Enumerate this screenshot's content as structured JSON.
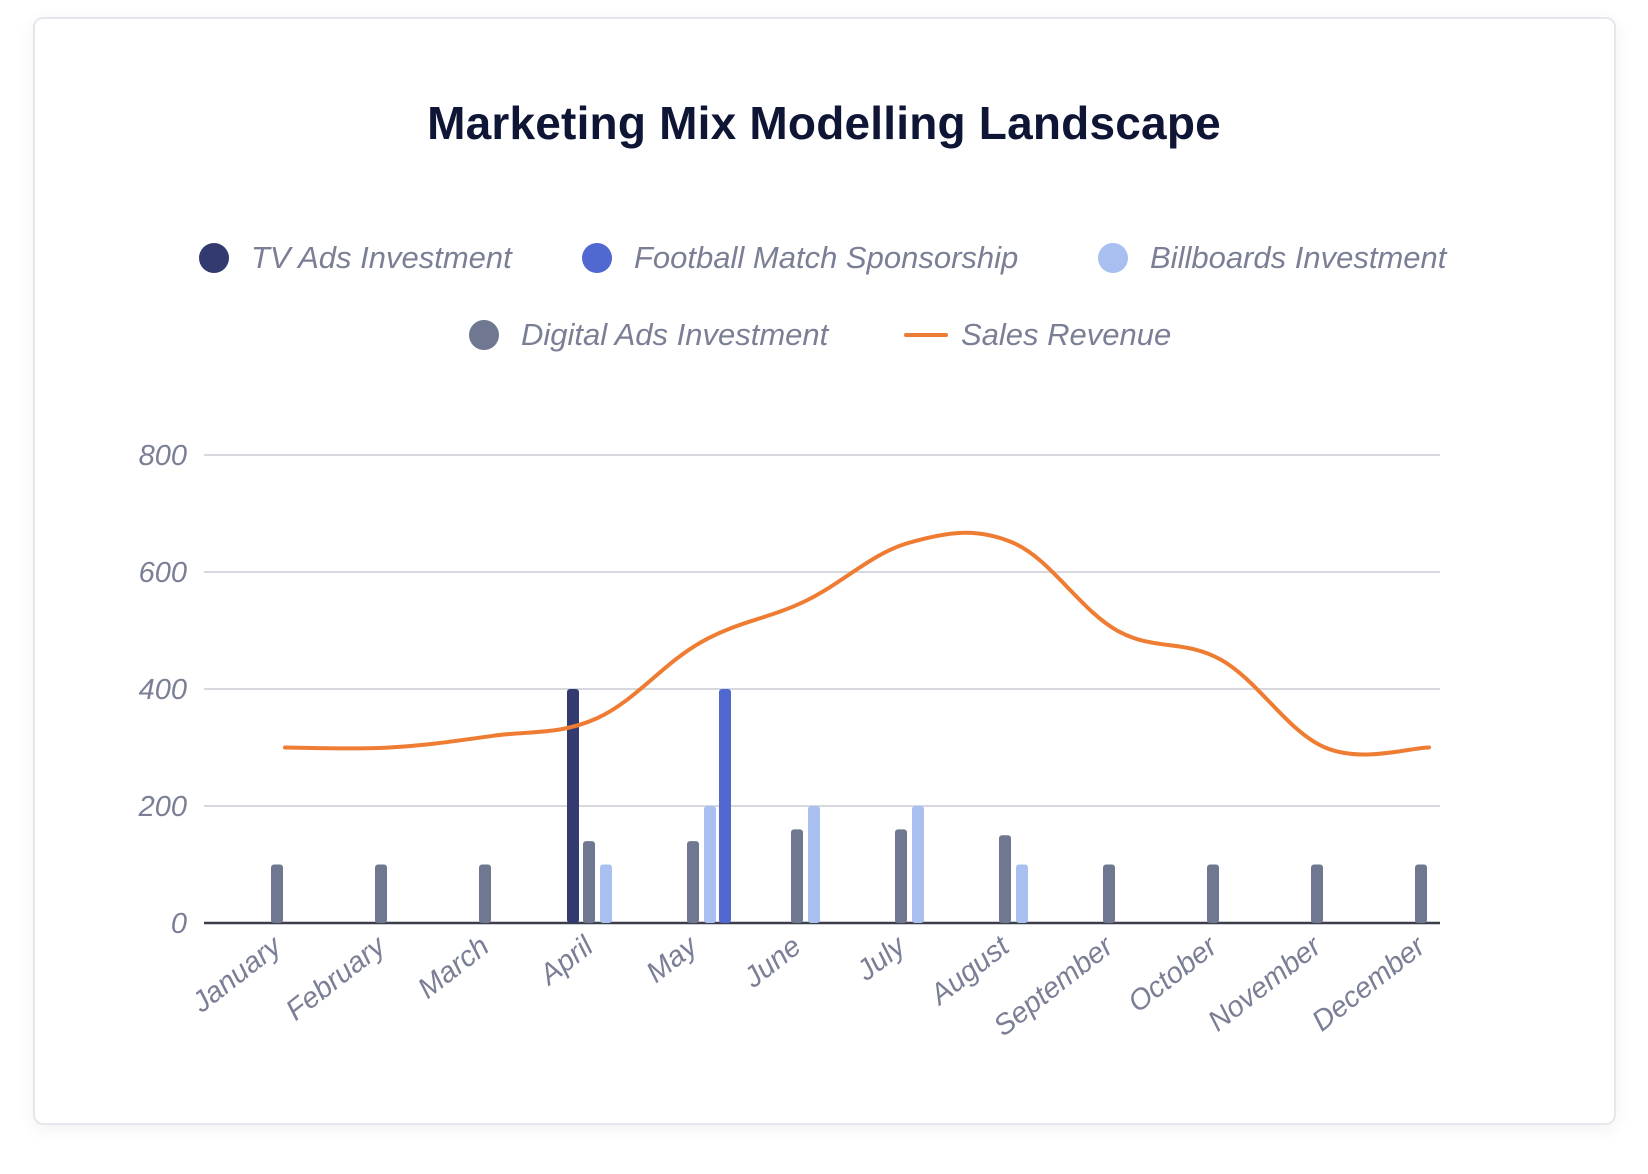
{
  "chart_data": {
    "type": "bar",
    "title": "Marketing Mix Modelling Landscape",
    "categories": [
      "January",
      "February",
      "March",
      "April",
      "May",
      "June",
      "July",
      "August",
      "September",
      "October",
      "November",
      "December"
    ],
    "ylim": [
      0,
      800
    ],
    "yticks": [
      "0",
      "200",
      "400",
      "600",
      "800"
    ],
    "grid": true,
    "legend_position": "top-center",
    "series": [
      {
        "name": "TV Ads Investment",
        "type": "bar",
        "color": "#323a70",
        "values": [
          0,
          0,
          0,
          400,
          0,
          0,
          0,
          0,
          0,
          0,
          0,
          0
        ]
      },
      {
        "name": "Football Match Sponsorship",
        "type": "bar",
        "color": "#5068d0",
        "values": [
          0,
          0,
          0,
          0,
          400,
          0,
          0,
          0,
          0,
          0,
          0,
          0
        ]
      },
      {
        "name": "Billboards Investment",
        "type": "bar",
        "color": "#a8bff0",
        "values": [
          0,
          0,
          0,
          100,
          200,
          200,
          200,
          100,
          0,
          0,
          0,
          0
        ]
      },
      {
        "name": "Digital Ads Investment",
        "type": "bar",
        "color": "#6f7791",
        "values": [
          100,
          100,
          100,
          140,
          140,
          160,
          160,
          150,
          100,
          100,
          100,
          100
        ]
      },
      {
        "name": "Sales Revenue",
        "type": "line",
        "color": "#ee7d33",
        "values": [
          300,
          300,
          320,
          350,
          480,
          550,
          650,
          650,
          500,
          450,
          300,
          300
        ]
      }
    ]
  }
}
